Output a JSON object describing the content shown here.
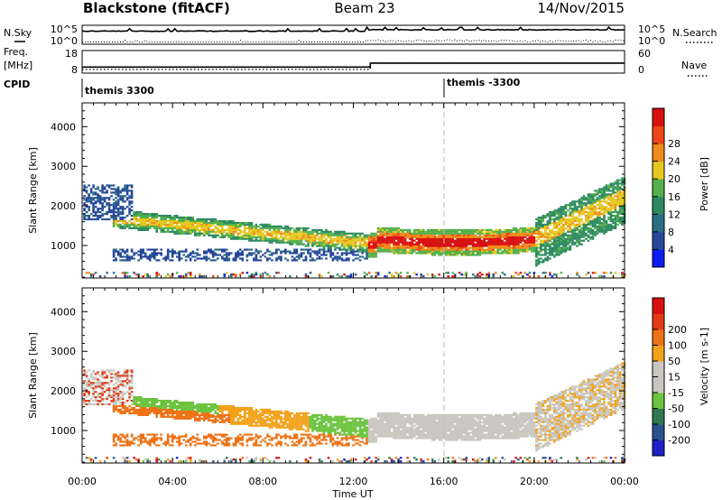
{
  "header": {
    "station": "Blackstone (fitACF)",
    "beam": "Beam 23",
    "date": "14/Nov/2015"
  },
  "left_labels": {
    "nsky": "N.Sky",
    "freq": "Freq.",
    "freq_unit": "[MHz]",
    "cpid": "CPID"
  },
  "right_labels": {
    "nsearch": "N.Search",
    "nave": "Nave"
  },
  "cpid_labels": [
    "themis 3300",
    "themis -3300"
  ],
  "time_axis": {
    "ticks": [
      "00:00",
      "04:00",
      "08:00",
      "12:00",
      "16:00",
      "20:00",
      "00:00"
    ],
    "label": "Time UT"
  },
  "colors": {
    "power": [
      "#0b1cf0",
      "#26479a",
      "#2a6e86",
      "#2d8a60",
      "#55b04c",
      "#e5c81f",
      "#f08a1a",
      "#ee4616",
      "#d81010"
    ],
    "velocity": [
      "#1e20c8",
      "#27508c",
      "#2f7a52",
      "#6cc43f",
      "#c9c7c0",
      "#c9c7c0",
      "#f2a21a",
      "#ee7216",
      "#e33a14",
      "#d81010"
    ]
  },
  "chart_data": [
    {
      "type": "line",
      "title": "N.Sky / N.Search",
      "series": [
        {
          "name": "N.Sky",
          "style": "solid"
        },
        {
          "name": "N.Search",
          "style": "dotted"
        }
      ],
      "yticks": [
        "10^5",
        "10^0"
      ]
    },
    {
      "type": "line",
      "title": "Freq. / Nave",
      "series": [
        {
          "name": "Freq.",
          "style": "solid",
          "x": [
            "00:00",
            "12:45",
            "12:45",
            "24:00"
          ],
          "values": [
            10.5,
            10.5,
            12.4,
            12.4
          ]
        },
        {
          "name": "Nave",
          "style": "dotted",
          "x": [
            "00:00",
            "12:45",
            "12:45",
            "24:00"
          ],
          "values": [
            8,
            8,
            26,
            26
          ]
        }
      ],
      "yticks_left": [
        "18",
        "8"
      ],
      "yticks_right": [
        "60",
        "0"
      ]
    },
    {
      "type": "heatmap",
      "ylabel": "Slant Range [km]",
      "xlabel": "Time UT",
      "ylim": [
        180,
        4600
      ],
      "yticks": [
        1000,
        2000,
        3000,
        4000
      ],
      "colorbar": {
        "label": "Power [dB]",
        "ticks": [
          4,
          8,
          12,
          16,
          20,
          24,
          28
        ]
      }
    },
    {
      "type": "heatmap",
      "ylabel": "Slant Range [km]",
      "xlabel": "Time UT",
      "ylim": [
        180,
        4600
      ],
      "yticks": [
        1000,
        2000,
        3000,
        4000
      ],
      "colorbar": {
        "label": "Velocity [m s-1]",
        "ticks": [
          -200,
          -100,
          -50,
          -15,
          15,
          50,
          100,
          200
        ]
      }
    }
  ]
}
